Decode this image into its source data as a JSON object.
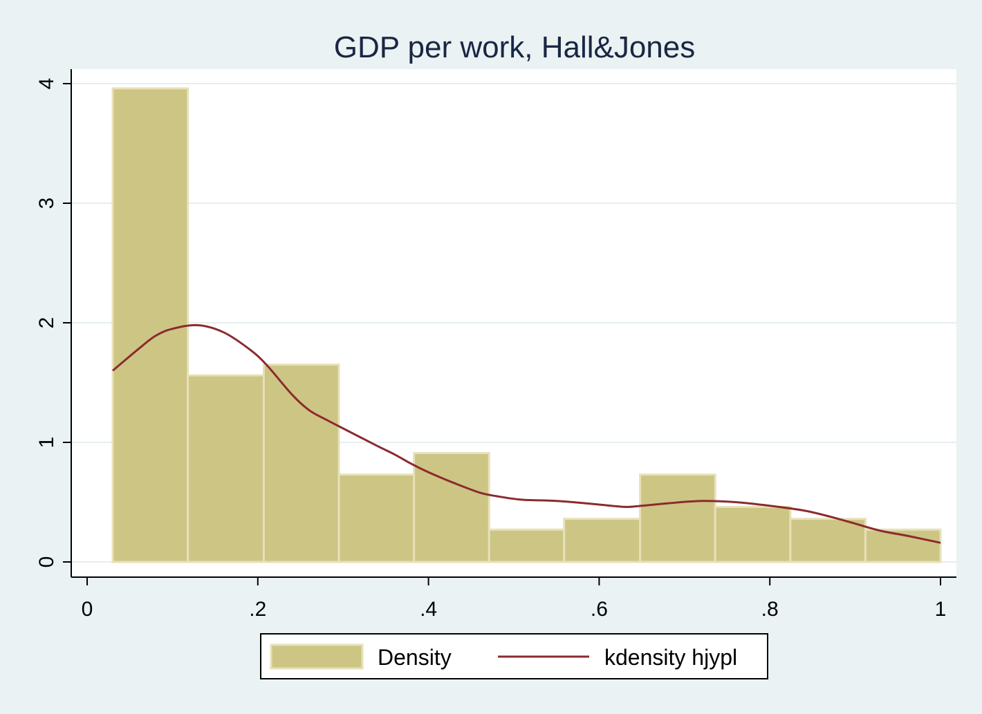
{
  "chart_data": {
    "type": "bar",
    "title": "GDP per work, Hall&Jones",
    "xlabel": "",
    "ylabel": "",
    "xlim": [
      0,
      1
    ],
    "ylim": [
      0,
      4
    ],
    "xticks": [
      0,
      0.2,
      0.4,
      0.6,
      0.8,
      1
    ],
    "xtick_labels": [
      "0",
      ".2",
      ".4",
      ".6",
      ".8",
      "1"
    ],
    "yticks": [
      0,
      1,
      2,
      3,
      4
    ],
    "ytick_labels": [
      "0",
      "1",
      "2",
      "3",
      "4"
    ],
    "grid": true,
    "legend_position": "bottom",
    "series": [
      {
        "name": "Density",
        "type": "histogram",
        "color": "#cdc584",
        "bins": [
          {
            "x0": 0.03,
            "x1": 0.118,
            "value": 3.96
          },
          {
            "x0": 0.118,
            "x1": 0.207,
            "value": 1.56
          },
          {
            "x0": 0.207,
            "x1": 0.295,
            "value": 1.65
          },
          {
            "x0": 0.295,
            "x1": 0.383,
            "value": 0.73
          },
          {
            "x0": 0.383,
            "x1": 0.471,
            "value": 0.91
          },
          {
            "x0": 0.471,
            "x1": 0.559,
            "value": 0.27
          },
          {
            "x0": 0.559,
            "x1": 0.648,
            "value": 0.36
          },
          {
            "x0": 0.648,
            "x1": 0.736,
            "value": 0.73
          },
          {
            "x0": 0.736,
            "x1": 0.824,
            "value": 0.46
          },
          {
            "x0": 0.824,
            "x1": 0.912,
            "value": 0.36
          },
          {
            "x0": 0.912,
            "x1": 1.0,
            "value": 0.27
          }
        ]
      },
      {
        "name": "kdensity hjypl",
        "type": "line",
        "color": "#8b2a2e",
        "x": [
          0.03,
          0.06,
          0.08,
          0.1,
          0.13,
          0.16,
          0.19,
          0.21,
          0.24,
          0.26,
          0.28,
          0.31,
          0.34,
          0.36,
          0.38,
          0.4,
          0.43,
          0.46,
          0.48,
          0.51,
          0.55,
          0.6,
          0.63,
          0.65,
          0.68,
          0.72,
          0.76,
          0.8,
          0.84,
          0.87,
          0.9,
          0.93,
          0.96,
          1.0
        ],
        "y": [
          1.6,
          1.78,
          1.89,
          1.95,
          1.98,
          1.92,
          1.78,
          1.65,
          1.4,
          1.27,
          1.19,
          1.08,
          0.97,
          0.9,
          0.82,
          0.75,
          0.66,
          0.58,
          0.55,
          0.52,
          0.51,
          0.48,
          0.46,
          0.47,
          0.49,
          0.51,
          0.5,
          0.47,
          0.43,
          0.38,
          0.32,
          0.26,
          0.22,
          0.16
        ]
      }
    ]
  }
}
